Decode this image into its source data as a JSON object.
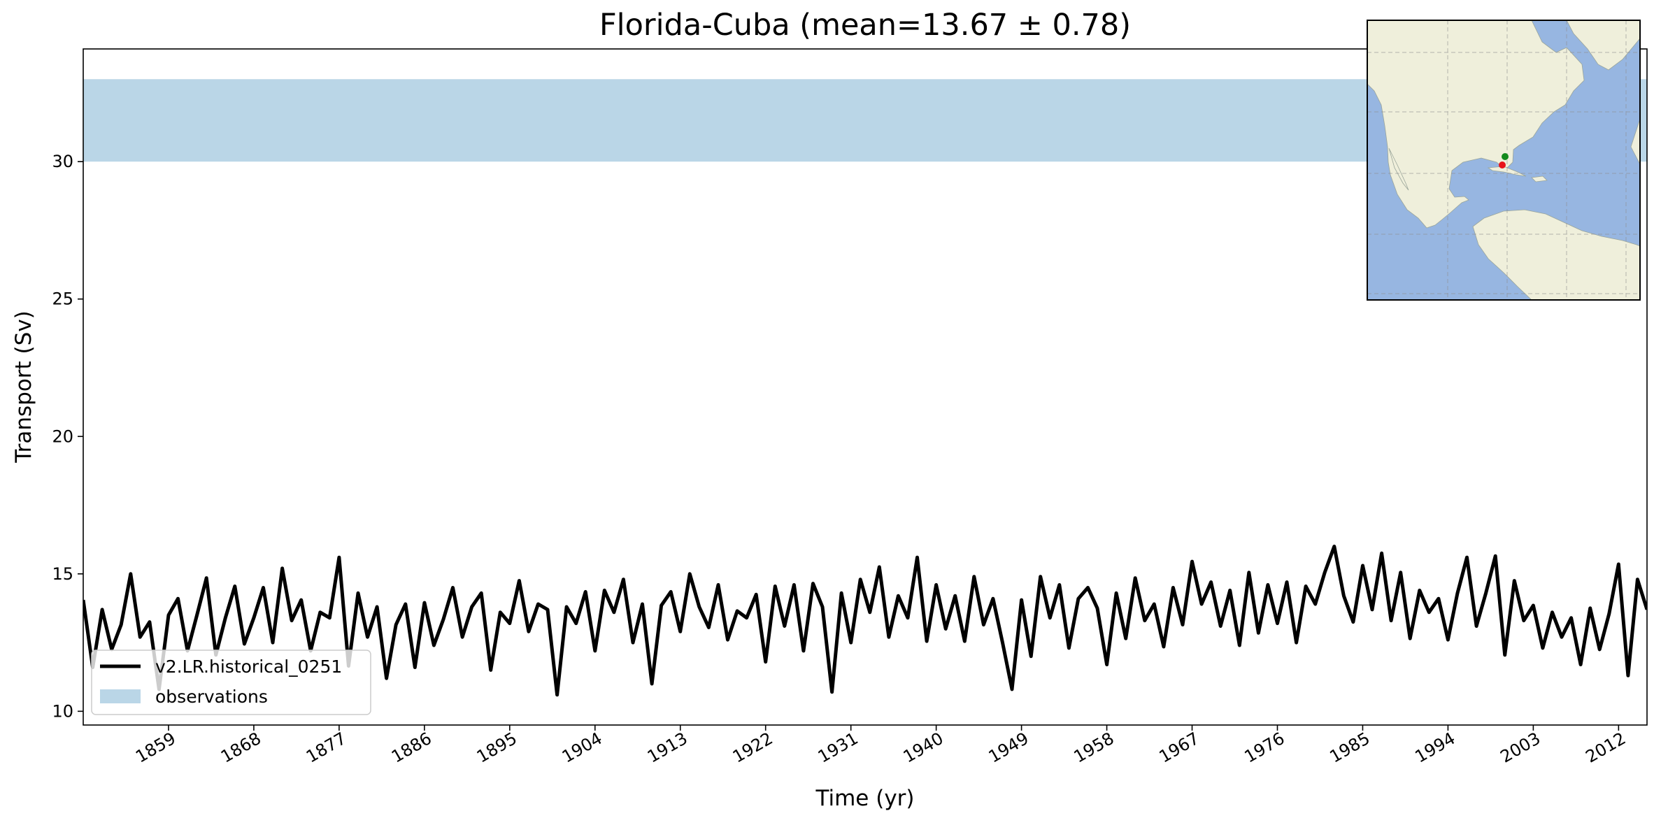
{
  "chart_data": {
    "type": "line",
    "title": "Florida-Cuba (mean=13.67 ± 0.78)",
    "xlabel": "Time (yr)",
    "ylabel": "Transport (Sv)",
    "xlim": [
      1850,
      2015
    ],
    "ylim": [
      9.5,
      34.1
    ],
    "grid": false,
    "legend_position": "lower-left",
    "x_ticks": [
      "1859",
      "1868",
      "1877",
      "1886",
      "1895",
      "1904",
      "1913",
      "1922",
      "1931",
      "1940",
      "1949",
      "1958",
      "1967",
      "1976",
      "1985",
      "1994",
      "2003",
      "2012"
    ],
    "y_ticks": [
      "10",
      "15",
      "20",
      "25",
      "30"
    ],
    "observations_band": {
      "name": "observations",
      "y_range": [
        30,
        33
      ],
      "color": "#bad6e7"
    },
    "series": [
      {
        "name": "v2.LR.historical_0251",
        "color": "#000000",
        "x": [
          1850.0,
          1851.0,
          1852.0,
          1853.0,
          1854.0,
          1855.0,
          1856.0,
          1857.0,
          1858.0,
          1859.0,
          1860.0,
          1861.0,
          1862.0,
          1863.0,
          1864.0,
          1865.0,
          1866.0,
          1867.0,
          1868.0,
          1869.0,
          1870.0,
          1871.0,
          1872.0,
          1873.0,
          1874.0,
          1875.0,
          1876.0,
          1877.0,
          1878.0,
          1879.0,
          1880.0,
          1881.0,
          1882.0,
          1883.0,
          1884.0,
          1885.0,
          1886.0,
          1887.0,
          1888.0,
          1889.0,
          1890.0,
          1891.0,
          1892.0,
          1893.0,
          1894.0,
          1895.0,
          1896.0,
          1897.0,
          1898.0,
          1899.0,
          1900.0,
          1901.0,
          1902.0,
          1903.0,
          1904.0,
          1905.0,
          1906.0,
          1907.0,
          1908.0,
          1909.0,
          1910.0,
          1911.0,
          1912.0,
          1913.0,
          1914.0,
          1915.0,
          1916.0,
          1917.0,
          1918.0,
          1919.0,
          1920.0,
          1921.0,
          1922.0,
          1923.0,
          1924.0,
          1925.0,
          1926.0,
          1927.0,
          1928.0,
          1929.0,
          1930.0,
          1931.0,
          1932.0,
          1933.0,
          1934.0,
          1935.0,
          1936.0,
          1937.0,
          1938.0,
          1939.0,
          1940.0,
          1941.0,
          1942.0,
          1943.0,
          1944.0,
          1945.0,
          1946.0,
          1947.0,
          1948.0,
          1949.0,
          1950.0,
          1951.0,
          1952.0,
          1953.0,
          1954.0,
          1955.0,
          1956.0,
          1957.0,
          1958.0,
          1959.0,
          1960.0,
          1961.0,
          1962.0,
          1963.0,
          1964.0,
          1965.0,
          1966.0,
          1967.0,
          1968.0,
          1969.0,
          1970.0,
          1971.0,
          1972.0,
          1973.0,
          1974.0,
          1975.0,
          1976.0,
          1977.0,
          1978.0,
          1979.0,
          1980.0,
          1981.0,
          1982.0,
          1983.0,
          1984.0,
          1985.0,
          1986.0,
          1987.0,
          1988.0,
          1989.0,
          1990.0,
          1991.0,
          1992.0,
          1993.0,
          1994.0,
          1995.0,
          1996.0,
          1997.0,
          1998.0,
          1999.0,
          2000.0,
          2001.0,
          2002.0,
          2003.0,
          2004.0,
          2005.0,
          2006.0,
          2007.0,
          2008.0,
          2009.0,
          2010.0,
          2011.0,
          2012.0,
          2013.0,
          2014.0,
          2015.0
        ],
        "y": [
          14.05,
          11.6,
          13.7,
          12.25,
          13.15,
          15.0,
          12.7,
          13.25,
          10.8,
          13.5,
          14.1,
          12.2,
          13.5,
          14.85,
          12.05,
          13.4,
          14.55,
          12.45,
          13.4,
          14.5,
          12.5,
          15.2,
          13.3,
          14.05,
          12.2,
          13.6,
          13.4,
          15.6,
          11.65,
          14.3,
          12.7,
          13.8,
          11.2,
          13.15,
          13.9,
          11.6,
          13.95,
          12.4,
          13.35,
          14.5,
          12.7,
          13.8,
          14.3,
          11.5,
          13.6,
          13.2,
          14.75,
          12.9,
          13.9,
          13.7,
          10.6,
          13.8,
          13.2,
          14.35,
          12.2,
          14.4,
          13.6,
          14.8,
          12.5,
          13.9,
          11.0,
          13.85,
          14.35,
          12.9,
          15.0,
          13.8,
          13.05,
          14.6,
          12.6,
          13.65,
          13.4,
          14.25,
          11.8,
          14.55,
          13.1,
          14.6,
          12.2,
          14.65,
          13.8,
          10.7,
          14.3,
          12.5,
          14.8,
          13.6,
          15.25,
          12.7,
          14.2,
          13.4,
          15.6,
          12.55,
          14.6,
          13.0,
          14.2,
          12.55,
          14.9,
          13.15,
          14.1,
          12.5,
          10.8,
          14.05,
          12.0,
          14.9,
          13.4,
          14.6,
          12.3,
          14.1,
          14.5,
          13.75,
          11.7,
          14.3,
          12.65,
          14.85,
          13.3,
          13.9,
          12.35,
          14.5,
          13.15,
          15.45,
          13.9,
          14.7,
          13.1,
          14.4,
          12.4,
          15.05,
          12.85,
          14.6,
          13.2,
          14.7,
          12.5,
          14.55,
          13.9,
          15.05,
          16.0,
          14.2,
          13.25,
          15.3,
          13.7,
          15.75,
          13.3,
          15.05,
          12.65,
          14.4,
          13.6,
          14.1,
          12.6,
          14.3,
          15.6,
          13.1,
          14.3,
          15.65,
          12.05,
          14.75,
          13.3,
          13.85,
          12.3,
          13.6,
          12.7,
          13.4,
          11.7,
          13.75,
          12.25,
          13.55,
          15.35,
          11.3,
          14.8,
          13.7
        ]
      }
    ],
    "inset_map": {
      "description_markers": [
        {
          "color": "#138a1c"
        },
        {
          "color": "#e8131a"
        }
      ],
      "ocean_color": "#97b6e1",
      "land_color": "#efefdb"
    }
  }
}
